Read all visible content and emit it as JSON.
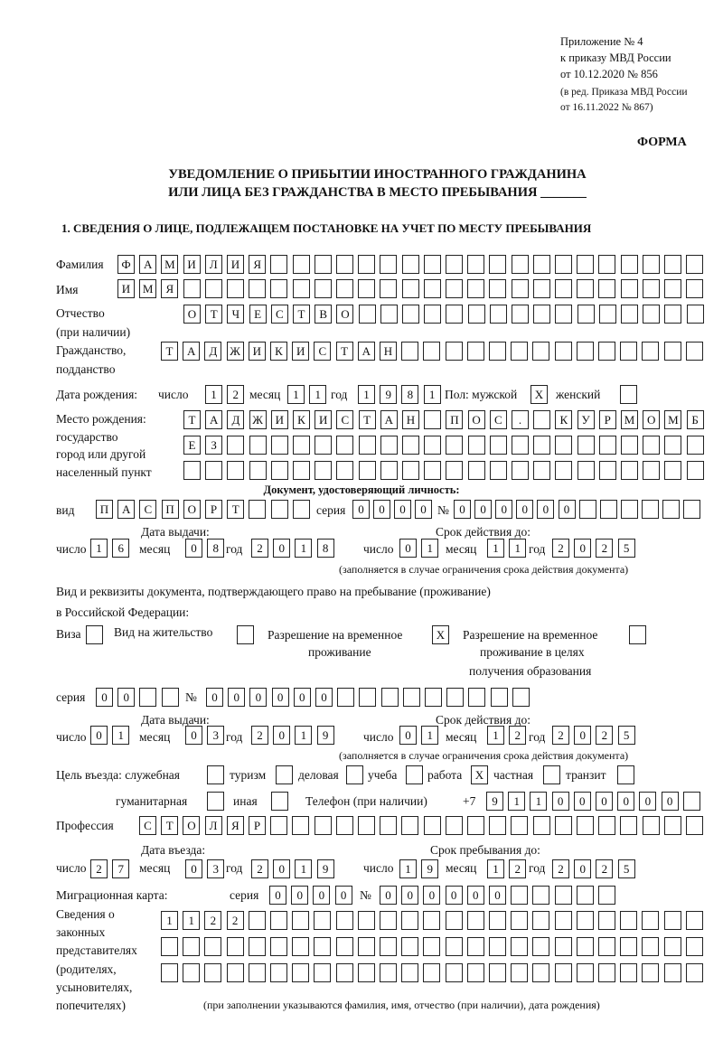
{
  "header": {
    "line1": "Приложение № 4",
    "line2": "к приказу МВД России",
    "line3": "от 10.12.2020 № 856",
    "line4": "(в ред. Приказа МВД России",
    "line5": "от 16.11.2022 № 867)",
    "forma": "ФОРМА"
  },
  "title": {
    "line1": "УВЕДОМЛЕНИЕ О ПРИБЫТИИ ИНОСТРАННОГО ГРАЖДАНИНА",
    "line2": "ИЛИ ЛИЦА БЕЗ ГРАЖДАНСТВА В МЕСТО ПРЕБЫВАНИЯ _______"
  },
  "section1": "1. СВЕДЕНИЯ О ЛИЦЕ, ПОДЛЕЖАЩЕМ ПОСТАНОВКЕ НА УЧЕТ ПО МЕСТУ ПРЕБЫВАНИЯ",
  "labels": {
    "surname": "Фамилия",
    "name": "Имя",
    "patronymic1": "Отчество",
    "patronymic2": "(при наличии)",
    "citizenship1": "Гражданство,",
    "citizenship2": "подданство",
    "birth_date": "Дата рождения:",
    "day": "число",
    "month": "месяц",
    "year": "год",
    "sex": "Пол: мужской",
    "female": "женский",
    "birth_place1": "Место рождения:",
    "birth_place2": "государство",
    "birth_place3": "город или другой",
    "birth_place4": "населенный пункт",
    "id_doc": "Документ, удостоверяющий личность:",
    "kind": "вид",
    "series": "серия",
    "number": "№",
    "issue_date": "Дата выдачи:",
    "valid_until": "Срок действия до:",
    "validity_note": "(заполняется в случае ограничения срока действия документа)",
    "right_doc1": "Вид и реквизиты документа, подтверждающего право на пребывание (проживание)",
    "right_doc2": "в Российской Федерации:",
    "visa": "Виза",
    "residence": "Вид на жительство",
    "temp1": "Разрешение на временное",
    "temp2": "проживание",
    "edu1": "Разрешение на временное",
    "edu2": "проживание в целях",
    "edu3": "получения образования",
    "purpose": "Цель въезда: служебная",
    "tourism": "туризм",
    "business": "деловая",
    "study": "учеба",
    "work": "работа",
    "private": "частная",
    "transit": "транзит",
    "humanitarian": "гуманитарная",
    "other": "иная",
    "phone": "Телефон (при наличии)",
    "phone_prefix": "+7",
    "profession": "Профессия",
    "entry_date": "Дата въезда:",
    "stay_until": "Срок пребывания до:",
    "migration_card": "Миграционная карта:",
    "rep1": "Сведения о",
    "rep2": "законных",
    "rep3": "представителях",
    "rep4": "(родителях,",
    "rep5": "усыновителях,",
    "rep6": "попечителях)",
    "rep_note": "(при заполнении указываются фамилия, имя, отчество (при наличии), дата рождения)"
  },
  "fields": {
    "surname": "ФАМИЛИЯ",
    "name": "ИМЯ",
    "patronymic": "ОТЧЕСТВО",
    "citizenship": "ТАДЖИКИСТАН",
    "birth_day": "12",
    "birth_month": "11",
    "birth_year": "1981",
    "sex_male": "X",
    "sex_female": "",
    "birth_place_1": "ТАДЖИКИСТАН ПОС. КУРМОМБ",
    "birth_place_2": "ЕЗ",
    "birth_place_3": "",
    "doc_kind": "ПАСПОРТ",
    "doc_series": "0000",
    "doc_number": "000000",
    "doc_issue_day": "16",
    "doc_issue_month": "08",
    "doc_issue_year": "2018",
    "doc_valid_day": "01",
    "doc_valid_month": "11",
    "doc_valid_year": "2025",
    "visa": "",
    "residence": "",
    "temp_residence": "X",
    "temp_residence_edu": "",
    "right_series": "00",
    "right_number": "000000",
    "right_issue_day": "01",
    "right_issue_month": "03",
    "right_issue_year": "2019",
    "right_valid_day": "01",
    "right_valid_month": "12",
    "right_valid_year": "2025",
    "p_service": "",
    "p_tourism": "",
    "p_business": "",
    "p_study": "",
    "p_work": "X",
    "p_private": "",
    "p_transit": "",
    "p_humanitarian": "",
    "p_other": "",
    "phone": "911000000",
    "profession": "СТОЛЯР",
    "entry_day": "27",
    "entry_month": "03",
    "entry_year": "2019",
    "stay_day": "19",
    "stay_month": "12",
    "stay_year": "2025",
    "mc_series": "0000",
    "mc_number": "000000",
    "rep_1": "1122",
    "rep_2": "",
    "rep_3": ""
  }
}
